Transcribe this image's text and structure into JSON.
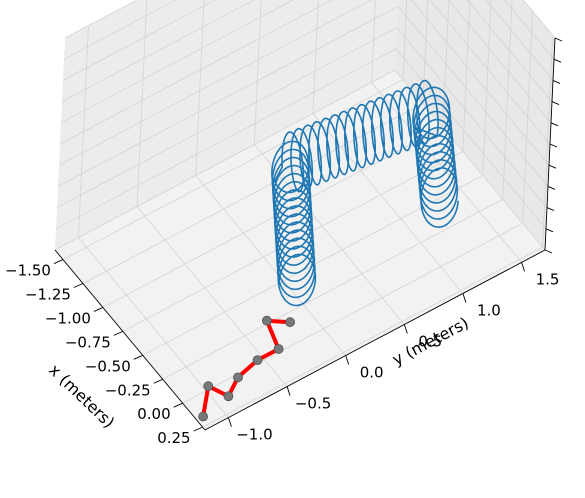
{
  "chart_data": {
    "type": "3d-line",
    "title": "",
    "xlabel": "x (meters)",
    "ylabel": "y (meters)",
    "x_ticks": [
      "−1.50",
      "−1.25",
      "−1.00",
      "−0.75",
      "−0.50",
      "−0.25",
      "0.00",
      "0.25"
    ],
    "y_ticks": [
      "−1.0",
      "−0.5",
      "0.0",
      "0.5",
      "1.0",
      "1.5"
    ],
    "grid": true,
    "series": [
      {
        "kind": "helix",
        "color": "#1f77b4",
        "path_xy": [
          [
            -0.2,
            -0.1
          ],
          [
            -1.1,
            0.45
          ],
          [
            -0.95,
            1.55
          ],
          [
            -0.25,
            1.15
          ]
        ],
        "coils": 42,
        "radius_m": 0.13
      },
      {
        "kind": "robot-arm",
        "color": "#ff0000",
        "joint_color": "#777777",
        "points_xy": [
          [
            0.25,
            -1.2
          ],
          [
            0.05,
            -1.02
          ],
          [
            0.2,
            -0.95
          ],
          [
            0.1,
            -0.8
          ],
          [
            0.05,
            -0.6
          ],
          [
            0.05,
            -0.42
          ],
          [
            -0.2,
            -0.35
          ],
          [
            -0.1,
            -0.22
          ]
        ]
      }
    ]
  }
}
